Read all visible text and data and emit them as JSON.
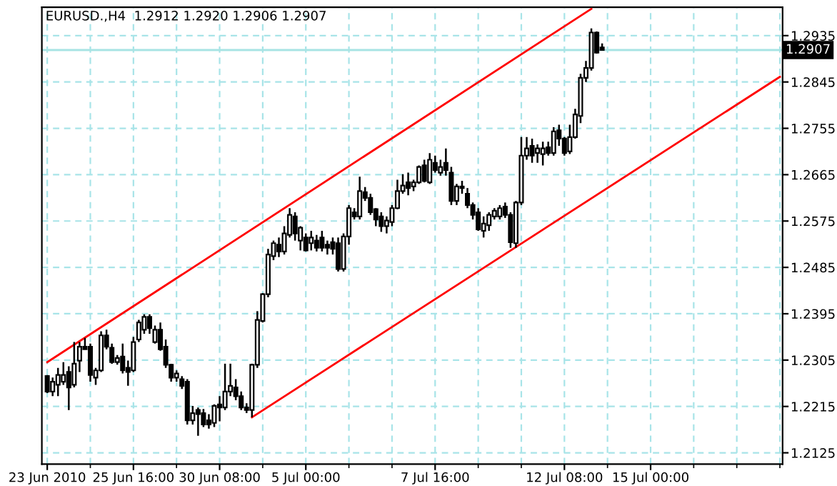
{
  "chart_data": {
    "type": "candlestick",
    "title": "EURUSD.,H4  1.2912 1.2920 1.2906 1.2907",
    "categories": [
      "23 Jun 2010",
      null,
      null,
      null,
      null,
      null,
      null,
      null,
      null,
      null,
      null,
      null,
      null,
      null,
      null,
      null,
      "25 Jun 16:00",
      null,
      null,
      null,
      null,
      null,
      null,
      null,
      null,
      null,
      null,
      null,
      null,
      null,
      null,
      null,
      "30 Jun 08:00",
      null,
      null,
      null,
      null,
      null,
      null,
      null,
      null,
      null,
      null,
      null,
      null,
      null,
      null,
      null,
      "5 Jul 00:00",
      null,
      null,
      null,
      null,
      null,
      null,
      null,
      null,
      null,
      null,
      null,
      null,
      null,
      null,
      null,
      null,
      null,
      null,
      null,
      null,
      null,
      null,
      null,
      "7 Jul 16:00",
      null,
      null,
      null,
      null,
      null,
      null,
      null,
      null,
      null,
      null,
      null,
      null,
      null,
      null,
      null,
      null,
      null,
      null,
      null,
      null,
      null,
      null,
      null,
      "12 Jul 08:00",
      null,
      null,
      null,
      null,
      null,
      null,
      null,
      null,
      null,
      null,
      null,
      null,
      null,
      null,
      null,
      "15 Jul 00:00",
      null,
      null,
      null,
      null,
      null,
      null,
      null,
      null,
      null,
      null,
      null,
      null,
      null,
      null,
      null,
      null,
      null,
      null,
      null,
      null,
      null,
      null,
      null,
      null
    ],
    "series": [
      {
        "type": "candlestick",
        "color": "#000000",
        "ohlc": [
          [
            1.2274,
            1.2276,
            1.2241,
            1.2244
          ],
          [
            1.2244,
            1.2271,
            1.2235,
            1.2263
          ],
          [
            1.2257,
            1.229,
            1.2235,
            1.2276
          ],
          [
            1.2263,
            1.2301,
            1.2257,
            1.2276
          ],
          [
            1.2282,
            1.2293,
            1.2208,
            1.2252
          ],
          [
            1.2257,
            1.234,
            1.2252,
            1.2298
          ],
          [
            1.2304,
            1.234,
            1.2282,
            1.2331
          ],
          [
            1.2331,
            1.2348,
            1.2326,
            1.2326
          ],
          [
            1.2331,
            1.2337,
            1.2263,
            1.2276
          ],
          [
            1.2271,
            1.229,
            1.2257,
            1.2285
          ],
          [
            1.2285,
            1.2361,
            1.2282,
            1.2353
          ],
          [
            1.2353,
            1.2364,
            1.2326,
            1.2331
          ],
          [
            1.2329,
            1.2337,
            1.2298,
            1.2301
          ],
          [
            1.2301,
            1.2315,
            1.2296,
            1.2309
          ],
          [
            1.2312,
            1.2337,
            1.2279,
            1.2285
          ],
          [
            1.229,
            1.2304,
            1.2255,
            1.2282
          ],
          [
            1.2285,
            1.235,
            1.2282,
            1.234
          ],
          [
            1.2345,
            1.2383,
            1.234,
            1.2378
          ],
          [
            1.2364,
            1.2394,
            1.2356,
            1.2389
          ],
          [
            1.2389,
            1.2394,
            1.2356,
            1.2367
          ],
          [
            1.234,
            1.2372,
            1.2337,
            1.2364
          ],
          [
            1.2364,
            1.2378,
            1.2323,
            1.2326
          ],
          [
            1.2331,
            1.2345,
            1.229,
            1.2296
          ],
          [
            1.2296,
            1.2298,
            1.2263,
            1.2271
          ],
          [
            1.2271,
            1.2285,
            1.2263,
            1.2279
          ],
          [
            1.2268,
            1.2274,
            1.2249,
            1.2255
          ],
          [
            1.2263,
            1.2268,
            1.218,
            1.2188
          ],
          [
            1.2188,
            1.2216,
            1.218,
            1.2202
          ],
          [
            1.2208,
            1.2213,
            1.2158,
            1.22
          ],
          [
            1.2202,
            1.221,
            1.2175,
            1.218
          ],
          [
            1.2188,
            1.22,
            1.2172,
            1.218
          ],
          [
            1.2183,
            1.2219,
            1.2175,
            1.2216
          ],
          [
            1.2219,
            1.2235,
            1.2186,
            1.2213
          ],
          [
            1.2213,
            1.2298,
            1.2208,
            1.2244
          ],
          [
            1.2244,
            1.2298,
            1.2235,
            1.2255
          ],
          [
            1.2252,
            1.2268,
            1.2227,
            1.2235
          ],
          [
            1.2235,
            1.2244,
            1.2208,
            1.2213
          ],
          [
            1.2213,
            1.2221,
            1.2202,
            1.2208
          ],
          [
            1.2208,
            1.2298,
            1.2194,
            1.2296
          ],
          [
            1.2296,
            1.24,
            1.229,
            1.2383
          ],
          [
            1.2381,
            1.2435,
            1.2378,
            1.2433
          ],
          [
            1.2433,
            1.2521,
            1.2427,
            1.251
          ],
          [
            1.2507,
            1.2537,
            1.2499,
            1.2532
          ],
          [
            1.2529,
            1.2543,
            1.2505,
            1.2516
          ],
          [
            1.2516,
            1.2565,
            1.251,
            1.2551
          ],
          [
            1.2548,
            1.26,
            1.2543,
            1.2587
          ],
          [
            1.2584,
            1.2592,
            1.2537,
            1.2551
          ],
          [
            1.2537,
            1.2565,
            1.2518,
            1.2562
          ],
          [
            1.2543,
            1.2551,
            1.2516,
            1.2518
          ],
          [
            1.2532,
            1.2556,
            1.2518,
            1.2543
          ],
          [
            1.2537,
            1.2548,
            1.2516,
            1.2523
          ],
          [
            1.2543,
            1.2556,
            1.2516,
            1.2523
          ],
          [
            1.2529,
            1.2537,
            1.251,
            1.2523
          ],
          [
            1.2534,
            1.2543,
            1.251,
            1.2521
          ],
          [
            1.2532,
            1.2543,
            1.2477,
            1.2482
          ],
          [
            1.2482,
            1.2551,
            1.2477,
            1.2545
          ],
          [
            1.2545,
            1.2606,
            1.2529,
            1.26
          ],
          [
            1.2592,
            1.26,
            1.2578,
            1.2584
          ],
          [
            1.2584,
            1.2661,
            1.2578,
            1.2633
          ],
          [
            1.2631,
            1.2641,
            1.2614,
            1.262
          ],
          [
            1.262,
            1.2628,
            1.2587,
            1.2592
          ],
          [
            1.2598,
            1.26,
            1.2565,
            1.2578
          ],
          [
            1.2584,
            1.2592,
            1.2554,
            1.2565
          ],
          [
            1.2565,
            1.2584,
            1.2551,
            1.2576
          ],
          [
            1.2573,
            1.2606,
            1.2565,
            1.26
          ],
          [
            1.26,
            1.2655,
            1.2598,
            1.2633
          ],
          [
            1.2633,
            1.2666,
            1.2628,
            1.2644
          ],
          [
            1.265,
            1.2669,
            1.2625,
            1.2639
          ],
          [
            1.2642,
            1.2655,
            1.2633,
            1.265
          ],
          [
            1.265,
            1.2683,
            1.2647,
            1.268
          ],
          [
            1.2683,
            1.2694,
            1.265,
            1.2653
          ],
          [
            1.265,
            1.2707,
            1.2647,
            1.2694
          ],
          [
            1.2688,
            1.2702,
            1.2669,
            1.2674
          ],
          [
            1.2669,
            1.2694,
            1.2663,
            1.268
          ],
          [
            1.2688,
            1.2716,
            1.2663,
            1.2674
          ],
          [
            1.2669,
            1.268,
            1.2606,
            1.2614
          ],
          [
            1.2614,
            1.2647,
            1.2606,
            1.2642
          ],
          [
            1.2642,
            1.2653,
            1.2628,
            1.2639
          ],
          [
            1.2628,
            1.2639,
            1.26,
            1.2606
          ],
          [
            1.2606,
            1.2611,
            1.2578,
            1.2587
          ],
          [
            1.2592,
            1.26,
            1.2556,
            1.2559
          ],
          [
            1.2556,
            1.2584,
            1.2543,
            1.257
          ],
          [
            1.2567,
            1.2592,
            1.2556,
            1.2587
          ],
          [
            1.2584,
            1.26,
            1.2578,
            1.2595
          ],
          [
            1.2584,
            1.2606,
            1.2578,
            1.26
          ],
          [
            1.2603,
            1.2611,
            1.2581,
            1.2587
          ],
          [
            1.2587,
            1.2592,
            1.2523,
            1.2534
          ],
          [
            1.2532,
            1.2614,
            1.2523,
            1.2611
          ],
          [
            1.2611,
            1.2738,
            1.2606,
            1.2702
          ],
          [
            1.2702,
            1.2738,
            1.2694,
            1.2716
          ],
          [
            1.2721,
            1.2735,
            1.2688,
            1.2702
          ],
          [
            1.2707,
            1.2724,
            1.2688,
            1.2716
          ],
          [
            1.2705,
            1.2729,
            1.2683,
            1.2716
          ],
          [
            1.2718,
            1.2729,
            1.2702,
            1.2707
          ],
          [
            1.2707,
            1.2757,
            1.2702,
            1.2749
          ],
          [
            1.2751,
            1.2762,
            1.2721,
            1.2735
          ],
          [
            1.2735,
            1.2738,
            1.2702,
            1.2707
          ],
          [
            1.271,
            1.2762,
            1.2705,
            1.2738
          ],
          [
            1.2738,
            1.2793,
            1.2735,
            1.2782
          ],
          [
            1.2779,
            1.2861,
            1.2765,
            1.2853
          ],
          [
            1.2853,
            1.2886,
            1.2845,
            1.2872
          ],
          [
            1.2872,
            1.2949,
            1.2867,
            1.2941
          ],
          [
            1.2941,
            1.2943,
            1.29,
            1.2902
          ],
          [
            1.2912,
            1.292,
            1.2906,
            1.2907
          ],
          null,
          null,
          null,
          null,
          null,
          null,
          null,
          null,
          null,
          null,
          null,
          null,
          null,
          null,
          null,
          null,
          null,
          null,
          null,
          null,
          null,
          null,
          null,
          null,
          null,
          null,
          null,
          null,
          null,
          null,
          null,
          null,
          null
        ]
      },
      {
        "type": "line",
        "color": "#ff0000",
        "values": [
          1.2301,
          null,
          null,
          null,
          null,
          null,
          null,
          null,
          null,
          null,
          null,
          null,
          null,
          null,
          null,
          null,
          null,
          null,
          null,
          null,
          null,
          null,
          null,
          null,
          null,
          null,
          null,
          null,
          null,
          null,
          null,
          null,
          null,
          null,
          null,
          null,
          null,
          null,
          null,
          null,
          null,
          null,
          null,
          null,
          null,
          null,
          null,
          null,
          null,
          null,
          null,
          null,
          null,
          null,
          null,
          null,
          null,
          null,
          null,
          null,
          null,
          null,
          null,
          null,
          null,
          null,
          null,
          null,
          null,
          null,
          null,
          null,
          null,
          null,
          null,
          null,
          null,
          null,
          null,
          null,
          null,
          null,
          null,
          null,
          null,
          null,
          null,
          null,
          null,
          null,
          null,
          null,
          null,
          null,
          null,
          null,
          null,
          null,
          null,
          null,
          null,
          1.2987,
          null,
          null,
          null,
          null,
          null,
          null,
          null,
          null,
          null,
          null,
          null,
          null,
          null,
          null,
          null,
          null,
          null,
          null,
          null,
          null,
          null,
          null,
          null,
          null,
          null,
          null,
          null,
          null,
          null,
          null,
          null,
          null,
          null,
          null,
          null
        ]
      },
      {
        "type": "line",
        "color": "#ff0000",
        "values": [
          null,
          null,
          null,
          null,
          null,
          null,
          null,
          null,
          null,
          null,
          null,
          null,
          null,
          null,
          null,
          null,
          null,
          null,
          null,
          null,
          null,
          null,
          null,
          null,
          null,
          null,
          null,
          null,
          null,
          null,
          null,
          null,
          null,
          null,
          null,
          null,
          null,
          null,
          1.2194,
          null,
          null,
          null,
          null,
          null,
          null,
          null,
          null,
          null,
          null,
          null,
          null,
          null,
          null,
          null,
          null,
          null,
          null,
          null,
          null,
          null,
          null,
          null,
          null,
          null,
          null,
          null,
          null,
          null,
          null,
          null,
          null,
          null,
          null,
          null,
          null,
          null,
          null,
          null,
          null,
          null,
          null,
          null,
          null,
          null,
          null,
          null,
          null,
          null,
          null,
          null,
          null,
          null,
          null,
          null,
          null,
          null,
          null,
          null,
          null,
          null,
          null,
          null,
          null,
          null,
          null,
          null,
          null,
          null,
          null,
          null,
          null,
          null,
          null,
          null,
          null,
          null,
          null,
          null,
          null,
          null,
          null,
          null,
          null,
          null,
          null,
          null,
          null,
          null,
          null,
          null,
          null,
          null,
          null,
          null,
          null,
          null,
          1.2855
        ]
      }
    ],
    "ylim": [
      1.2103,
      1.299
    ],
    "yticks": [
      1.2125,
      1.2215,
      1.2305,
      1.2395,
      1.2485,
      1.2575,
      1.2665,
      1.2755,
      1.2845,
      1.2935
    ],
    "ref_lines": [
      {
        "axis": "y",
        "value": 1.2907,
        "label": "1.2907",
        "color": "#a8e4e4"
      }
    ],
    "grid": true
  }
}
